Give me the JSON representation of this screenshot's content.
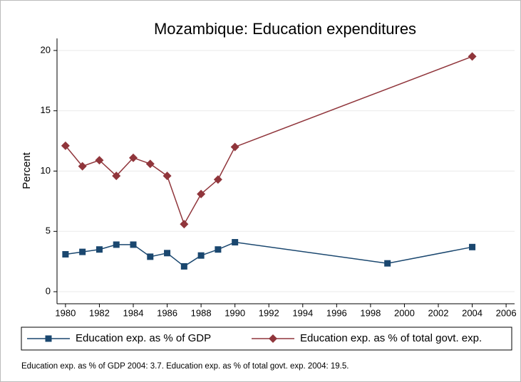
{
  "chart_data": {
    "type": "line",
    "title": "Mozambique: Education expenditures",
    "y_label": "Percent",
    "note": "Education exp. as % of GDP 2004: 3.7. Education exp. as % of total govt. exp. 2004: 19.5.",
    "xlim": [
      1979.5,
      2006.5
    ],
    "xticks": [
      1980,
      1982,
      1984,
      1986,
      1988,
      1990,
      1992,
      1994,
      1996,
      1998,
      2000,
      2002,
      2004,
      2006
    ],
    "ylim": [
      -1,
      21
    ],
    "yticks": [
      0,
      5,
      10,
      15,
      20
    ],
    "grid": true,
    "legend": "bottom",
    "series": [
      {
        "name": "Education exp. as % of GDP",
        "color": "#1a476f",
        "marker": "square",
        "x": [
          1980,
          1981,
          1982,
          1983,
          1984,
          1985,
          1986,
          1987,
          1988,
          1989,
          1990,
          1999,
          2004
        ],
        "values": [
          3.1,
          3.3,
          3.5,
          3.9,
          3.9,
          2.9,
          3.2,
          2.1,
          3.0,
          3.5,
          4.1,
          2.35,
          3.7
        ]
      },
      {
        "name": "Education exp. as % of total govt. exp.",
        "color": "#90353b",
        "marker": "diamond",
        "x": [
          1980,
          1981,
          1982,
          1983,
          1984,
          1985,
          1986,
          1987,
          1988,
          1989,
          1990,
          2004
        ],
        "values": [
          12.1,
          10.4,
          10.9,
          9.6,
          11.1,
          10.6,
          9.6,
          5.6,
          8.1,
          9.3,
          12.0,
          19.5
        ]
      }
    ]
  }
}
